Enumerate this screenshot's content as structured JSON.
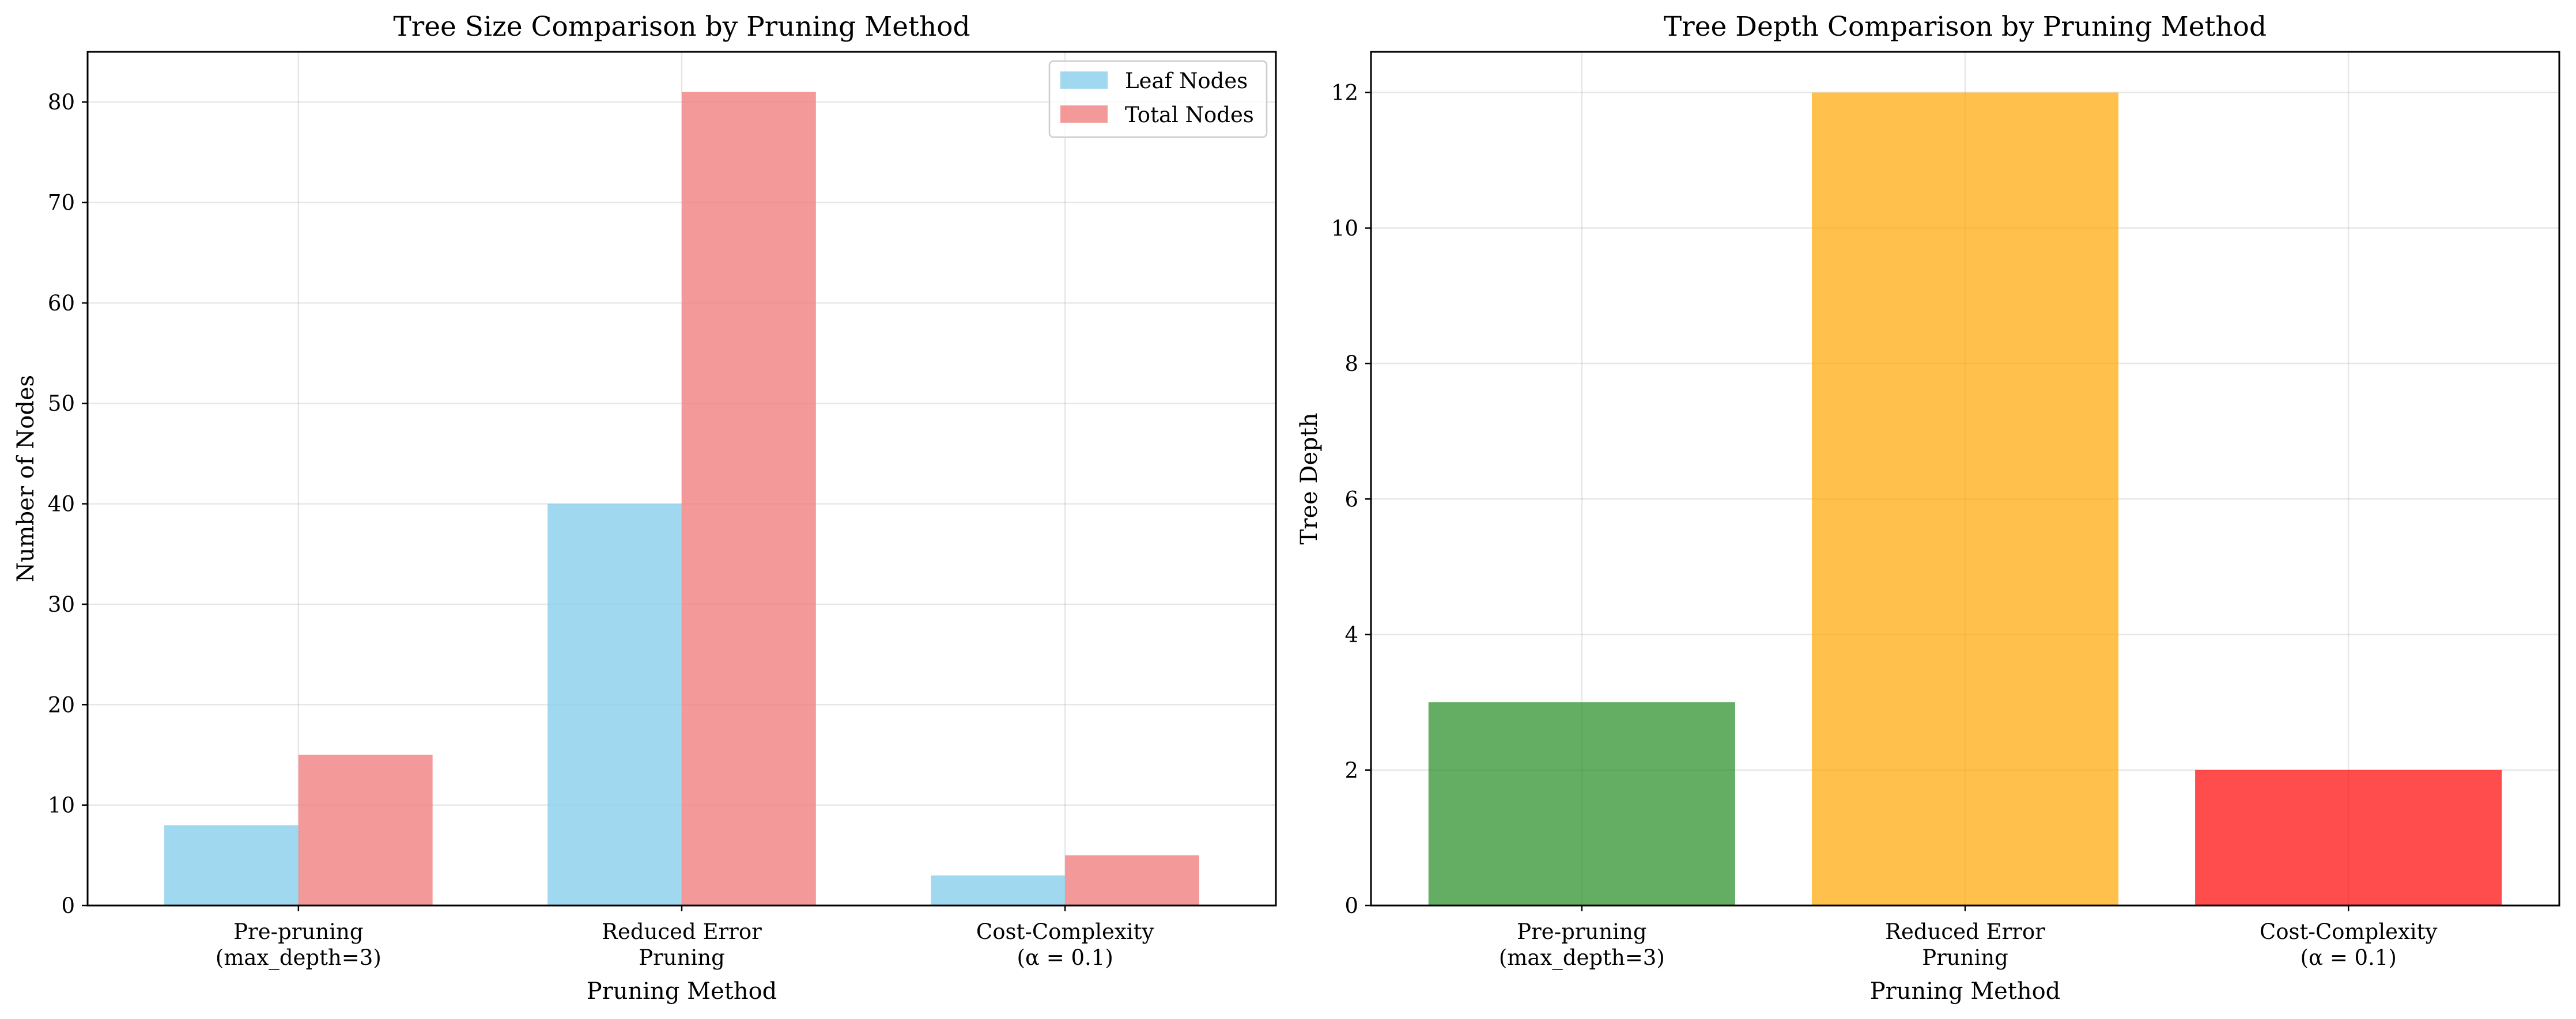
{
  "chart_data": [
    {
      "type": "bar",
      "title": "Tree Size Comparison by Pruning Method",
      "xlabel": "Pruning Method",
      "ylabel": "Number of Nodes",
      "categories": [
        [
          "Pre-pruning",
          "(max_depth=3)"
        ],
        [
          "Reduced Error",
          "Pruning"
        ],
        [
          "Cost-Complexity",
          "(α = 0.1)"
        ]
      ],
      "series": [
        {
          "name": "Leaf Nodes",
          "values": [
            8,
            40,
            3
          ],
          "color": "#87ceeb"
        },
        {
          "name": "Total Nodes",
          "values": [
            15,
            81,
            5
          ],
          "color": "#f08080"
        }
      ],
      "ylim": [
        0,
        85
      ],
      "yticks": [
        0,
        10,
        20,
        30,
        40,
        50,
        60,
        70,
        80
      ],
      "grid": true,
      "legend_position": "top-right"
    },
    {
      "type": "bar",
      "title": "Tree Depth Comparison by Pruning Method",
      "xlabel": "Pruning Method",
      "ylabel": "Tree Depth",
      "categories": [
        [
          "Pre-pruning",
          "(max_depth=3)"
        ],
        [
          "Reduced Error",
          "Pruning"
        ],
        [
          "Cost-Complexity",
          "(α = 0.1)"
        ]
      ],
      "values": [
        3,
        12,
        2
      ],
      "colors": [
        "#228b22",
        "#ffa500",
        "#ff0000"
      ],
      "ylim": [
        0,
        12.6
      ],
      "yticks": [
        0,
        2,
        4,
        6,
        8,
        10,
        12
      ],
      "grid": true
    }
  ]
}
